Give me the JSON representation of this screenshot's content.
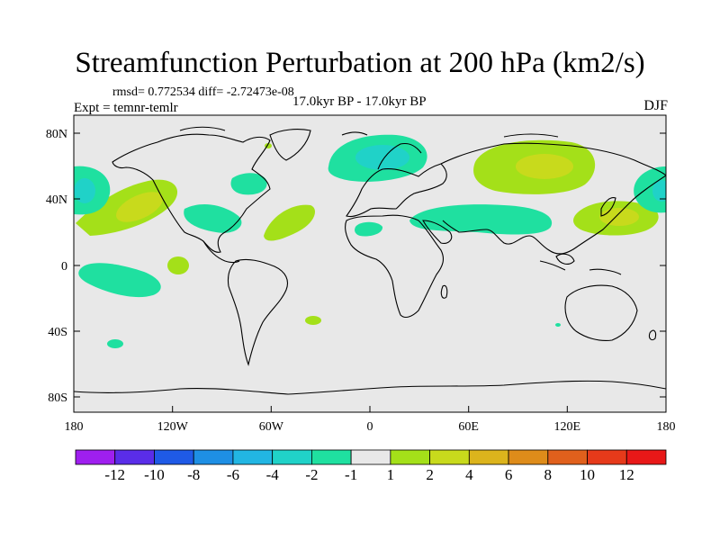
{
  "title": "Streamfunction Perturbation at 200 hPa (km2/s)",
  "rmsd_text": "rmsd= 0.772534 diff= -2.72473e-08",
  "expt_text": "Expt = temnr-temlr",
  "period_text": "17.0kyr BP - 17.0kyr BP",
  "season": "DJF",
  "lat_labels": [
    "80N",
    "40N",
    "0",
    "40S",
    "80S"
  ],
  "lon_labels": [
    "180",
    "120W",
    "60W",
    "0",
    "60E",
    "120E",
    "180"
  ],
  "colorbar": {
    "labels": [
      "-12",
      "-10",
      "-8",
      "-6",
      "-4",
      "-2",
      "-1",
      "1",
      "2",
      "4",
      "6",
      "8",
      "10",
      "12"
    ],
    "colors": [
      "#9f1fef",
      "#5a2de8",
      "#1f5ae6",
      "#1e8fe4",
      "#22b6e3",
      "#20d2c8",
      "#1fe0a0",
      "#e8e8e8",
      "#a4e019",
      "#c8da1c",
      "#dcb41c",
      "#de8c1a",
      "#e0601c",
      "#e63a1a",
      "#e81818"
    ]
  },
  "colors": {
    "background_field": "#e8e8e8",
    "coast": "#000000"
  }
}
